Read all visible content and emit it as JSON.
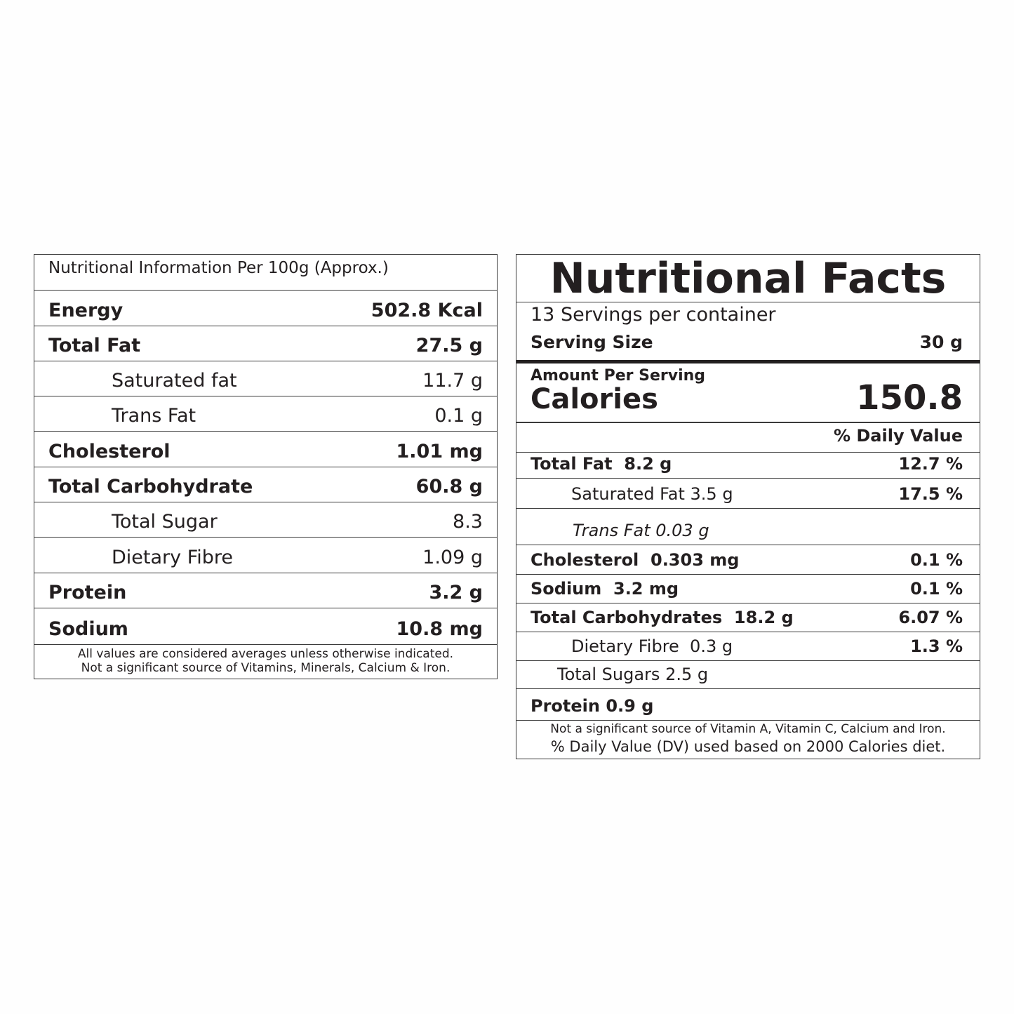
{
  "left": {
    "header": "Nutritional Information Per 100g (Approx.)",
    "rows": [
      {
        "label": "Energy",
        "value": "502.8 Kcal",
        "style": "main"
      },
      {
        "label": "Total Fat",
        "value": "27.5 g",
        "style": "main"
      },
      {
        "label": "Saturated fat",
        "value": "11.7 g",
        "style": "sub"
      },
      {
        "label": "Trans Fat",
        "value": "0.1 g",
        "style": "sub"
      },
      {
        "label": "Cholesterol",
        "value": "1.01 mg",
        "style": "main"
      },
      {
        "label": "Total Carbohydrate",
        "value": "60.8 g",
        "style": "main"
      },
      {
        "label": "Total Sugar",
        "value": "8.3",
        "style": "sub"
      },
      {
        "label": "Dietary Fibre",
        "value": "1.09 g",
        "style": "sub"
      },
      {
        "label": "Protein",
        "value": "3.2 g",
        "style": "main"
      },
      {
        "label": "Sodium",
        "value": "10.8 mg",
        "style": "main"
      }
    ],
    "footnote_line1": "All values are considered averages unless otherwise indicated.",
    "footnote_line2": "Not a significant source of Vitamins, Minerals, Calcium & Iron."
  },
  "right": {
    "title": "Nutritional Facts",
    "servings": "13 Servings per container",
    "serving_size_label": "Serving Size",
    "serving_size_value": "30 g",
    "amount_per_serving": "Amount Per Serving",
    "calories_label": "Calories",
    "calories_value": "150.8",
    "daily_value_header": "% Daily Value",
    "rows": [
      {
        "label_bold": "Total Fat",
        "label_rest": "  8.2 g",
        "rest_bold": true,
        "pct": "12.7 %"
      },
      {
        "label_bold": "",
        "label_rest": "Saturated Fat 3.5 g",
        "rest_bold": false,
        "pct": "17.5 %"
      },
      {
        "label_bold": "",
        "label_rest": "Trans Fat 0.03 g",
        "rest_bold": false,
        "pct": ""
      },
      {
        "label_bold": "Cholesterol",
        "label_rest": "  0.303 mg",
        "rest_bold": true,
        "pct": "0.1 %"
      },
      {
        "label_bold": "Sodium",
        "label_rest": "  3.2 mg",
        "rest_bold": true,
        "pct": "0.1 %"
      },
      {
        "label_bold": "Total Carbohydrates",
        "label_rest": "  18.2 g",
        "rest_bold": true,
        "pct": "6.07 %"
      },
      {
        "label_bold": "",
        "label_rest": "Dietary Fibre  0.3 g",
        "rest_bold": false,
        "pct": "1.3 %"
      },
      {
        "label_bold": "",
        "label_rest": "Total Sugars 2.5 g",
        "rest_bold": false,
        "pct": ""
      },
      {
        "label_bold": "Protein",
        "label_rest": " 0.9 g",
        "rest_bold": true,
        "pct": ""
      }
    ],
    "footnote_line1": "Not a significant source of Vitamin A, Vitamin C, Calcium and Iron.",
    "footnote_line2": "% Daily Value (DV) used based on 2000 Calories diet."
  }
}
